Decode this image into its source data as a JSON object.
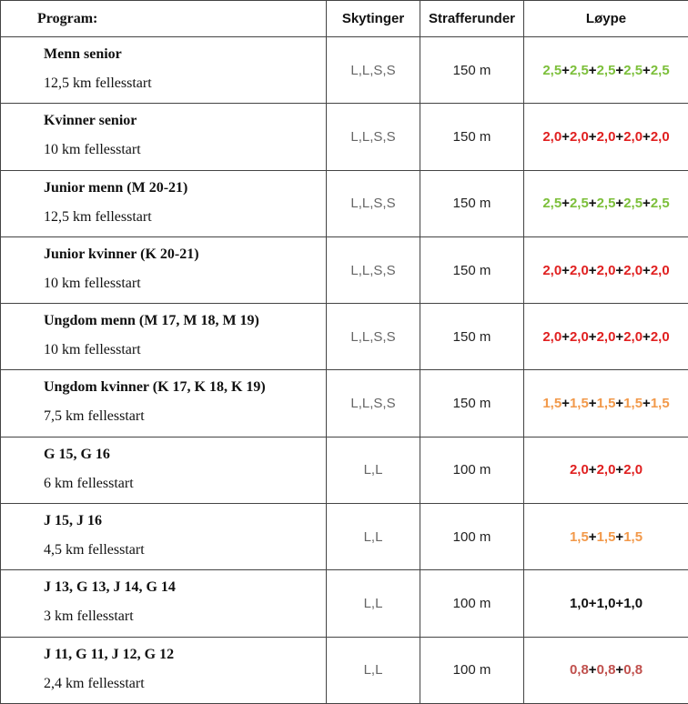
{
  "table": {
    "headers": {
      "program": "Program:",
      "shootings": "Skytinger",
      "penalty": "Strafferunder",
      "course": "Løype"
    },
    "separator": "+",
    "colors": {
      "green": "#7cbf3a",
      "red": "#e02020",
      "orange": "#f2994a",
      "black": "#111111",
      "dark_red": "#c0504d"
    },
    "rows": [
      {
        "name": "Menn senior",
        "distance": "12,5 km fellesstart",
        "shootings": "L,L,S,S",
        "penalty": "150 m",
        "laps": [
          "2,5",
          "2,5",
          "2,5",
          "2,5",
          "2,5"
        ],
        "lap_color": "#7cbf3a"
      },
      {
        "name": "Kvinner senior",
        "distance": "10 km fellesstart",
        "shootings": "L,L,S,S",
        "penalty": "150 m",
        "laps": [
          "2,0",
          "2,0",
          "2,0",
          "2,0",
          "2,0"
        ],
        "lap_color": "#e02020"
      },
      {
        "name": "Junior menn (M 20-21)",
        "distance": "12,5 km fellesstart",
        "shootings": "L,L,S,S",
        "penalty": "150 m",
        "laps": [
          "2,5",
          "2,5",
          "2,5",
          "2,5",
          "2,5"
        ],
        "lap_color": "#7cbf3a"
      },
      {
        "name": "Junior kvinner (K 20-21)",
        "distance": "10 km fellesstart",
        "shootings": "L,L,S,S",
        "penalty": "150 m",
        "laps": [
          "2,0",
          "2,0",
          "2,0",
          "2,0",
          "2,0"
        ],
        "lap_color": "#e02020"
      },
      {
        "name": "Ungdom menn (M 17, M 18, M 19)",
        "distance": "10 km fellesstart",
        "shootings": "L,L,S,S",
        "penalty": "150 m",
        "laps": [
          "2,0",
          "2,0",
          "2,0",
          "2,0",
          "2,0"
        ],
        "lap_color": "#e02020"
      },
      {
        "name": "Ungdom kvinner (K 17, K 18, K 19)",
        "distance": "7,5 km fellesstart",
        "shootings": "L,L,S,S",
        "penalty": "150 m",
        "laps": [
          "1,5",
          "1,5",
          "1,5",
          "1,5",
          "1,5"
        ],
        "lap_color": "#f2994a"
      },
      {
        "name": "G 15, G 16",
        "distance": "6 km fellesstart",
        "shootings": "L,L",
        "penalty": "100 m",
        "laps": [
          "2,0",
          "2,0",
          "2,0"
        ],
        "lap_color": "#e02020"
      },
      {
        "name": "J 15, J 16",
        "distance": "4,5 km fellesstart",
        "shootings": "L,L",
        "penalty": "100 m",
        "laps": [
          "1,5",
          "1,5",
          "1,5"
        ],
        "lap_color": "#f2994a"
      },
      {
        "name": "J 13, G 13, J 14, G 14",
        "distance": "3 km fellesstart",
        "shootings": "L,L",
        "penalty": "100 m",
        "laps": [
          "1,0",
          "1,0",
          "1,0"
        ],
        "lap_color": "#111111"
      },
      {
        "name": "J 11, G 11, J 12, G 12",
        "distance": "2,4 km fellesstart",
        "shootings": "L,L",
        "penalty": "100 m",
        "laps": [
          "0,8",
          "0,8",
          "0,8"
        ],
        "lap_color": "#c0504d"
      }
    ]
  }
}
